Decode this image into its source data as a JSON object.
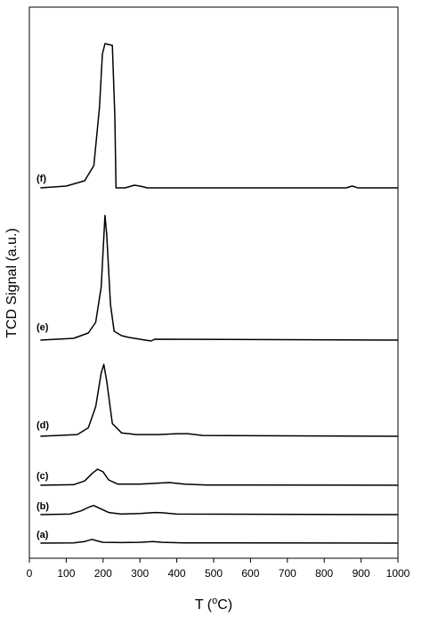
{
  "chart_data": {
    "type": "line",
    "title": "",
    "xlabel": "T (°C)",
    "xlabel_prefix": "T (",
    "xlabel_sup": "o",
    "xlabel_suffix": "C)",
    "ylabel": "TCD Signal (a.u.)",
    "xlim": [
      0,
      1000
    ],
    "x_ticks": [
      0,
      100,
      200,
      300,
      400,
      500,
      600,
      700,
      800,
      900,
      1000
    ],
    "y_ticks_shown": false,
    "grid": false,
    "legend": "none",
    "line_color": "#000000",
    "series": [
      {
        "label": "(a)",
        "baseline": 0,
        "points": [
          [
            30,
            0
          ],
          [
            120,
            0.5
          ],
          [
            150,
            3
          ],
          [
            170,
            7
          ],
          [
            185,
            4
          ],
          [
            200,
            1.5
          ],
          [
            250,
            1
          ],
          [
            300,
            1.5
          ],
          [
            335,
            3
          ],
          [
            360,
            1.5
          ],
          [
            420,
            0.5
          ],
          [
            1000,
            0
          ]
        ]
      },
      {
        "label": "(b)",
        "baseline": 0,
        "points": [
          [
            30,
            0
          ],
          [
            110,
            1
          ],
          [
            140,
            7
          ],
          [
            165,
            15
          ],
          [
            175,
            17
          ],
          [
            190,
            12
          ],
          [
            215,
            4
          ],
          [
            250,
            1
          ],
          [
            300,
            2
          ],
          [
            340,
            4
          ],
          [
            360,
            3.5
          ],
          [
            400,
            1
          ],
          [
            1000,
            0
          ]
        ]
      },
      {
        "label": "(c)",
        "baseline": 0,
        "points": [
          [
            30,
            0
          ],
          [
            120,
            1
          ],
          [
            150,
            8
          ],
          [
            170,
            22
          ],
          [
            185,
            30
          ],
          [
            200,
            25
          ],
          [
            215,
            10
          ],
          [
            240,
            2
          ],
          [
            300,
            2
          ],
          [
            350,
            4
          ],
          [
            380,
            5
          ],
          [
            420,
            2
          ],
          [
            480,
            0.5
          ],
          [
            1000,
            0
          ]
        ]
      },
      {
        "label": "(d)",
        "baseline": 0,
        "points": [
          [
            30,
            0
          ],
          [
            130,
            2
          ],
          [
            160,
            10
          ],
          [
            180,
            35
          ],
          [
            195,
            75
          ],
          [
            202,
            85
          ],
          [
            210,
            65
          ],
          [
            225,
            15
          ],
          [
            250,
            4
          ],
          [
            270,
            3
          ],
          [
            290,
            2
          ],
          [
            350,
            2
          ],
          [
            400,
            3
          ],
          [
            430,
            3
          ],
          [
            470,
            1
          ],
          [
            1000,
            0
          ]
        ]
      },
      {
        "label": "(e)",
        "baseline": 0,
        "points": [
          [
            30,
            0
          ],
          [
            120,
            2
          ],
          [
            160,
            8
          ],
          [
            180,
            20
          ],
          [
            195,
            60
          ],
          [
            205,
            140
          ],
          [
            210,
            118
          ],
          [
            220,
            40
          ],
          [
            230,
            10
          ],
          [
            250,
            5
          ],
          [
            270,
            3
          ],
          [
            300,
            1
          ],
          [
            330,
            -1
          ],
          [
            340,
            1
          ],
          [
            1000,
            0
          ]
        ]
      },
      {
        "label": "(f)",
        "baseline": 0,
        "points": [
          [
            30,
            0
          ],
          [
            100,
            2
          ],
          [
            150,
            8
          ],
          [
            175,
            25
          ],
          [
            190,
            90
          ],
          [
            198,
            150
          ],
          [
            205,
            162
          ],
          [
            225,
            160
          ],
          [
            232,
            80
          ],
          [
            235,
            0
          ],
          [
            260,
            0
          ],
          [
            285,
            3
          ],
          [
            300,
            2
          ],
          [
            320,
            0
          ],
          [
            410,
            0
          ],
          [
            860,
            0
          ],
          [
            875,
            2
          ],
          [
            885,
            1
          ],
          [
            890,
            0
          ],
          [
            1000,
            0
          ]
        ]
      }
    ]
  }
}
